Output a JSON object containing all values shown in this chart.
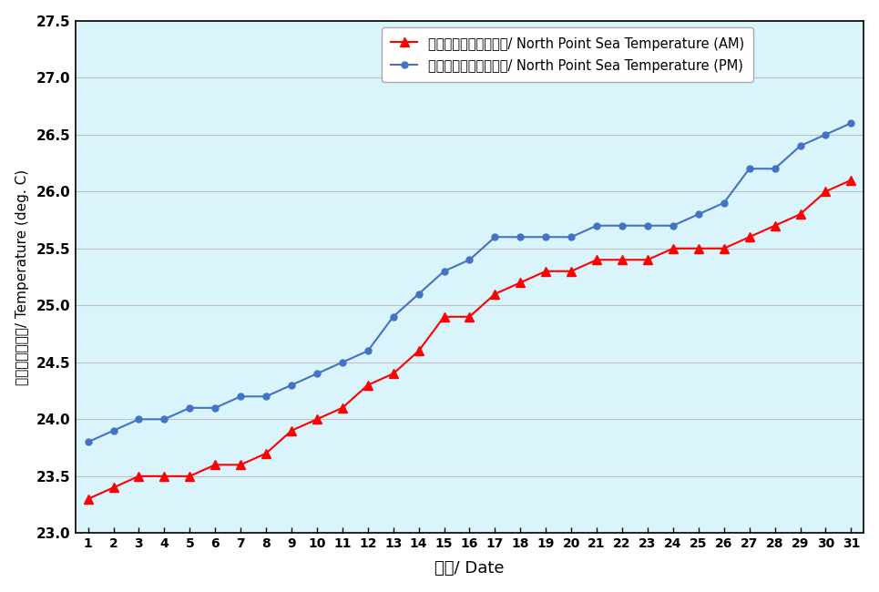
{
  "days": [
    1,
    2,
    3,
    4,
    5,
    6,
    7,
    8,
    9,
    10,
    11,
    12,
    13,
    14,
    15,
    16,
    17,
    18,
    19,
    20,
    21,
    22,
    23,
    24,
    25,
    26,
    27,
    28,
    29,
    30,
    31
  ],
  "am_temp": [
    23.3,
    23.4,
    23.5,
    23.5,
    23.5,
    23.6,
    23.6,
    23.7,
    23.9,
    24.0,
    24.1,
    24.3,
    24.4,
    24.6,
    24.9,
    24.9,
    25.1,
    25.2,
    25.3,
    25.3,
    25.4,
    25.4,
    25.4,
    25.5,
    25.5,
    25.5,
    25.6,
    25.7,
    25.8,
    26.0,
    26.1
  ],
  "pm_temp": [
    23.8,
    23.9,
    24.0,
    24.0,
    24.1,
    24.1,
    24.2,
    24.2,
    24.3,
    24.4,
    24.5,
    24.6,
    24.9,
    25.1,
    25.3,
    25.4,
    25.6,
    25.6,
    25.6,
    25.6,
    25.7,
    25.7,
    25.7,
    25.7,
    25.8,
    25.9,
    26.2,
    26.2,
    26.4,
    26.5,
    26.6
  ],
  "am_label": "北角海水溫度（上午）/ North Point Sea Temperature (AM)",
  "pm_label": "北角海水溫度（下午）/ North Point Sea Temperature (PM)",
  "xlabel": "日期/ Date",
  "ylabel": "溫度（攝氏度）/ Temperature (deg. C)",
  "ylim": [
    23.0,
    27.5
  ],
  "yticks": [
    23.0,
    23.5,
    24.0,
    24.5,
    25.0,
    25.5,
    26.0,
    26.5,
    27.0,
    27.5
  ],
  "am_color": "#ff0000",
  "pm_color": "#4472c4",
  "background_color": "#daf4fc",
  "outer_background": "#ffffff",
  "grid_color": "#c0c0c0",
  "legend_border": "#aaaaaa"
}
